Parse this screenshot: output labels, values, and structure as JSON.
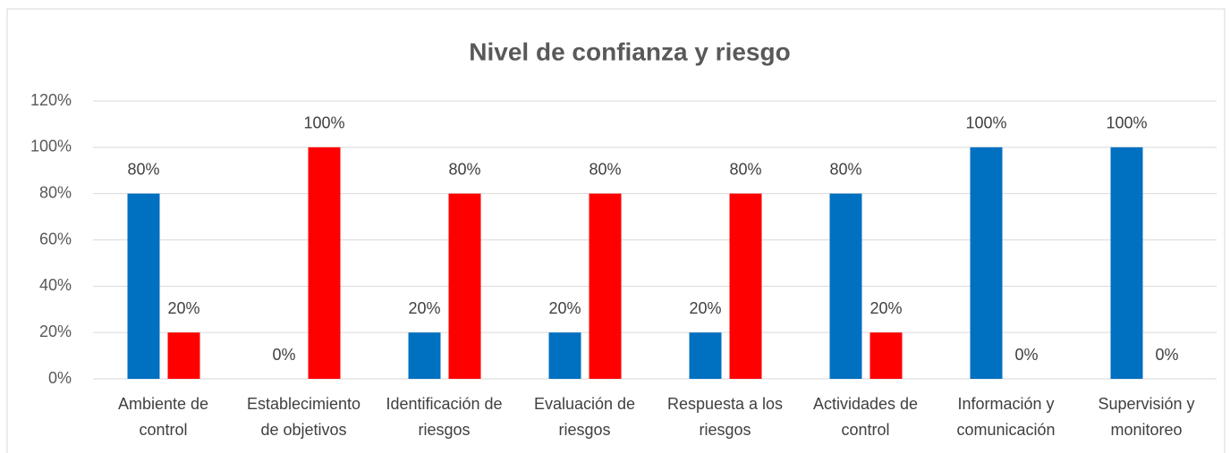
{
  "chart_data": {
    "type": "bar",
    "title": "Nivel de confianza y riesgo",
    "categories": [
      "Ambiente de control",
      "Establecimiento de objetivos",
      "Identificación de riesgos",
      "Evaluación de riesgos",
      "Respuesta a los riesgos",
      "Actividades de control",
      "Información y comunicación",
      "Supervisión y monitoreo"
    ],
    "series": [
      {
        "color": "#0070c0",
        "values": [
          80,
          0,
          20,
          20,
          20,
          80,
          100,
          100
        ],
        "value_labels": [
          "80%",
          "0%",
          "20%",
          "20%",
          "20%",
          "80%",
          "100%",
          "100%"
        ]
      },
      {
        "color": "#ff0000",
        "values": [
          20,
          100,
          80,
          80,
          80,
          20,
          0,
          0
        ],
        "value_labels": [
          "20%",
          "100%",
          "80%",
          "80%",
          "80%",
          "20%",
          "0%",
          "0%"
        ]
      }
    ],
    "ylim": [
      0,
      120
    ],
    "yticks": [
      {
        "value": 0,
        "label": "0%"
      },
      {
        "value": 20,
        "label": "20%"
      },
      {
        "value": 40,
        "label": "40%"
      },
      {
        "value": 60,
        "label": "60%"
      },
      {
        "value": 80,
        "label": "80%"
      },
      {
        "value": 100,
        "label": "100%"
      },
      {
        "value": 120,
        "label": "120%"
      }
    ],
    "grid": true
  }
}
